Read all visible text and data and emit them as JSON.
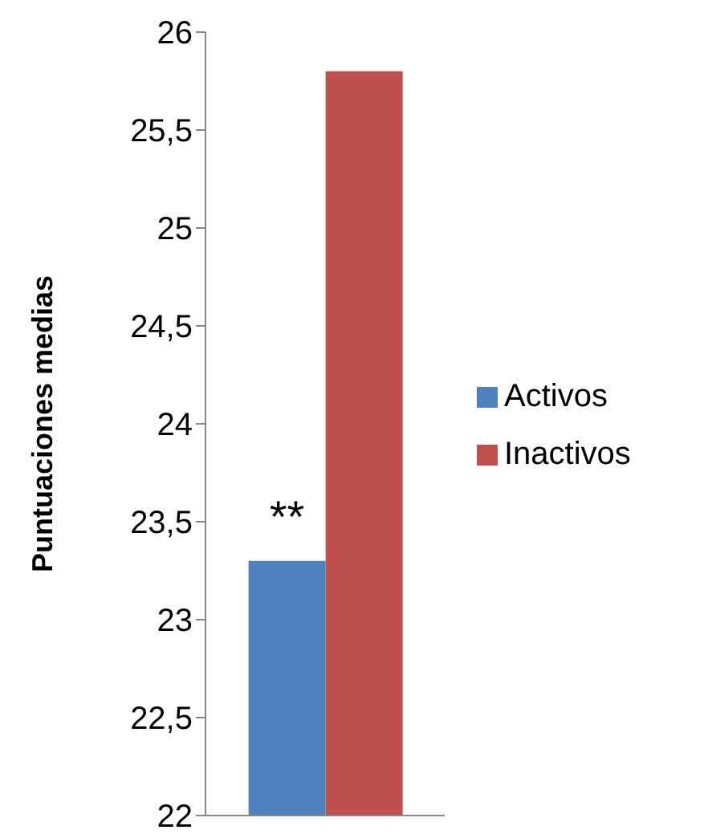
{
  "chart_data": {
    "type": "bar",
    "ylabel": "Puntuaciones medias",
    "categories": [
      null
    ],
    "series": [
      {
        "name": "Activos",
        "color": "#4f81bd",
        "values": [
          23.3
        ]
      },
      {
        "name": "Inactivos",
        "color": "#c0504d",
        "values": [
          25.8
        ]
      }
    ],
    "ylim": [
      22,
      26
    ],
    "yticks": [
      22,
      {
        "value": 22.5,
        "label": "22,5"
      },
      23,
      {
        "value": 23.5,
        "label": "23,5"
      },
      24,
      {
        "value": 24.5,
        "label": "24,5"
      },
      25,
      {
        "value": 25.5,
        "label": "25,5"
      },
      26
    ],
    "annotations": [
      "**"
    ],
    "legend": "right",
    "grid": false
  }
}
